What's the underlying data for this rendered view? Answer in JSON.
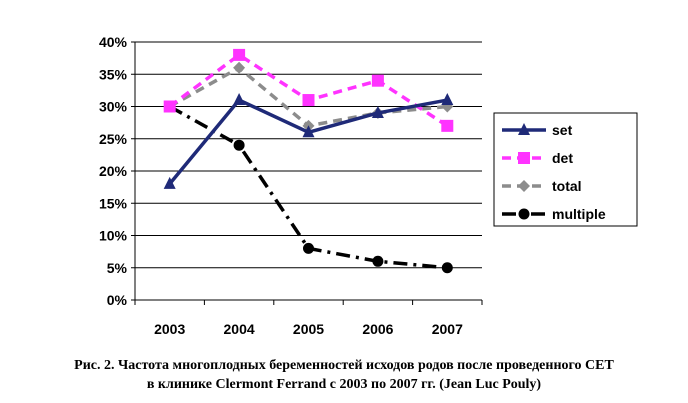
{
  "chart_data": {
    "type": "line",
    "categories": [
      "2003",
      "2004",
      "2005",
      "2006",
      "2007"
    ],
    "ylim": [
      0,
      40
    ],
    "y_ticks": [
      "0%",
      "5%",
      "10%",
      "15%",
      "20%",
      "25%",
      "30%",
      "35%",
      "40%"
    ],
    "y_unit": "%",
    "grid": true,
    "legend_position": "right",
    "series": [
      {
        "name": "set",
        "values": [
          18,
          31,
          26,
          29,
          31
        ],
        "color": "#1f2a78",
        "dash": "solid",
        "marker": "triangle"
      },
      {
        "name": "det",
        "values": [
          30,
          38,
          31,
          34,
          27
        ],
        "color": "#ff33ff",
        "dash": "dashed",
        "marker": "square"
      },
      {
        "name": "total",
        "values": [
          30,
          36,
          27,
          29,
          30
        ],
        "color": "#8c8c8c",
        "dash": "dashed",
        "marker": "diamond"
      },
      {
        "name": "multiple",
        "values": [
          30,
          24,
          8,
          6,
          5
        ],
        "color": "#000000",
        "dash": "dashdot",
        "marker": "circle"
      }
    ]
  },
  "caption": {
    "line1": "Рис. 2. Частота многоплодных беременностей исходов родов после проведенного СЕТ",
    "line2": "в клинике Clermont Ferrand с 2003 по 2007 гг. (Jean Luc Pouly)"
  }
}
